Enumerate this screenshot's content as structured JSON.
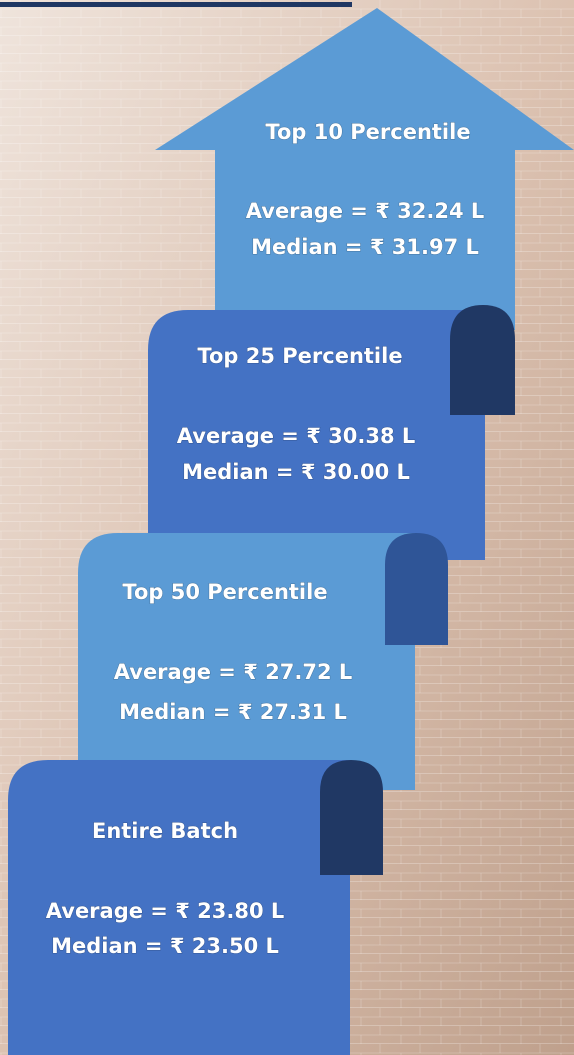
{
  "tiers": [
    {
      "title": "Top 10 Percentile",
      "average": "Average = ₹ 32.24 L",
      "median": "Median = ₹ 31.97 L"
    },
    {
      "title": "Top 25 Percentile",
      "average": "Average = ₹ 30.38 L",
      "median": "Median = ₹ 30.00 L"
    },
    {
      "title": "Top 50 Percentile",
      "average": "Average = ₹ 27.72 L",
      "median": "Median = ₹ 27.31 L"
    },
    {
      "title": "Entire Batch",
      "average": "Average = ₹ 23.80 L",
      "median": "Median = ₹ 23.50 L"
    }
  ]
}
